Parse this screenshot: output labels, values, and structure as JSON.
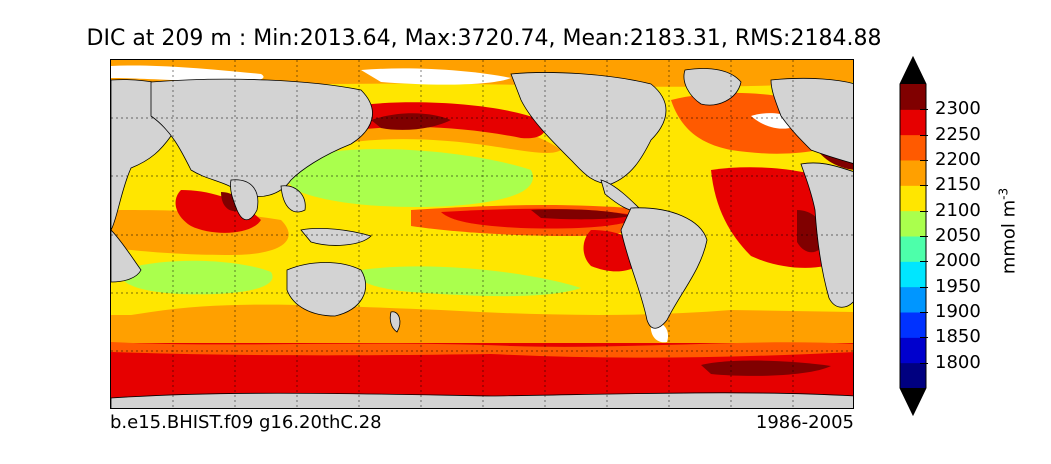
{
  "title": "DIC at 209 m : Min:2013.64, Max:3720.74, Mean:2183.31, RMS:2184.88",
  "caption_left": "b.e15.BHIST.f09 g16.20thC.28",
  "caption_right": "1986-2005",
  "colorbar": {
    "label_text": "mmol m",
    "label_exponent": "-3",
    "ticks": [
      "2300",
      "2250",
      "2200",
      "2150",
      "2100",
      "2050",
      "2000",
      "1950",
      "1900",
      "1850",
      "1800"
    ],
    "colors": [
      "#000080",
      "#0000cd",
      "#0032ff",
      "#0096ff",
      "#00e6ff",
      "#4dffaa",
      "#aaff4d",
      "#ffe600",
      "#ffa000",
      "#ff5a00",
      "#e60000",
      "#800000"
    ],
    "extend": "both"
  },
  "map": {
    "projection": "cylindrical",
    "land_color": "#d3d3d3",
    "sea_ice_color": "#ffffff",
    "gridlines": "dotted",
    "field_levels": {
      "below_2050": "#4dffaa",
      "2050_2100": "#aaff4d",
      "2100_2150": "#ffe600",
      "2150_2200": "#ffa000",
      "2200_2250": "#ff5a00",
      "2250_2300": "#e60000",
      "above_2300": "#800000"
    }
  }
}
